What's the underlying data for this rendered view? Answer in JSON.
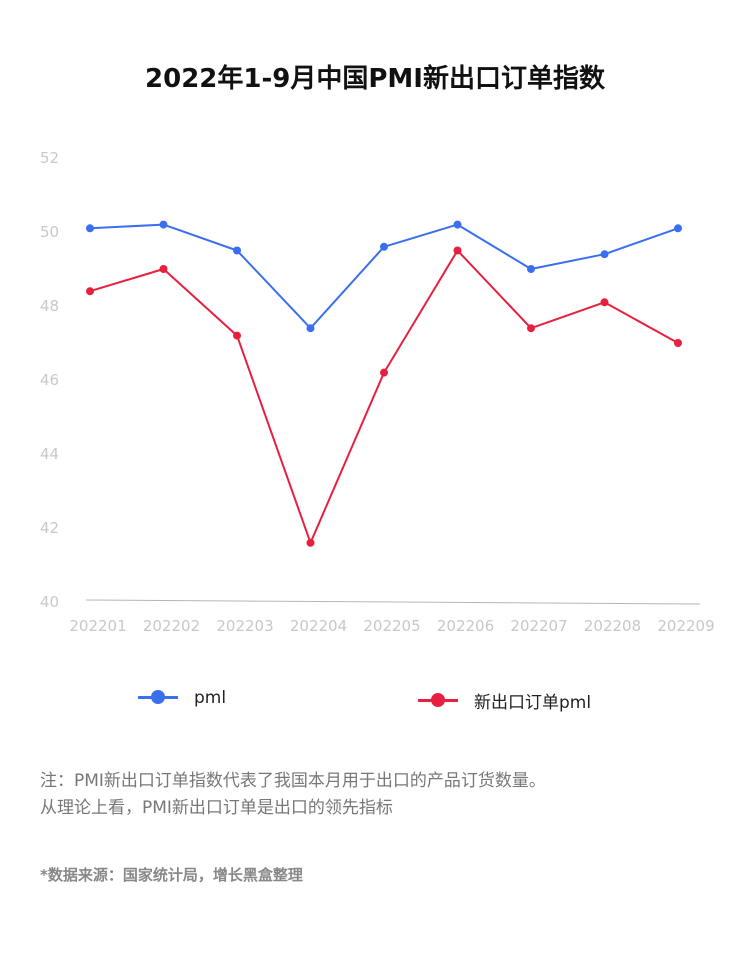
{
  "title": "2022年1-9月中国PMI新出口订单指数",
  "chart_data": {
    "type": "line",
    "categories": [
      "202201",
      "202202",
      "202203",
      "202204",
      "202205",
      "202206",
      "202207",
      "202208",
      "202209"
    ],
    "series": [
      {
        "name": "pml",
        "color": "#3a6ff0",
        "values": [
          50.1,
          50.2,
          49.5,
          47.4,
          49.6,
          50.2,
          49.0,
          49.4,
          50.1
        ]
      },
      {
        "name": "新出口订单pml",
        "color": "#e8203f",
        "values": [
          48.4,
          49.0,
          47.2,
          41.6,
          46.2,
          49.5,
          47.4,
          48.1,
          47.0
        ]
      }
    ],
    "yticks": [
      40,
      42,
      44,
      46,
      48,
      50,
      52
    ],
    "ylim": [
      40,
      52
    ],
    "title": "",
    "xlabel": "",
    "ylabel": "",
    "grid": false,
    "legend_position": "bottom"
  },
  "note": {
    "line1": "注：PMI新出口订单指数代表了我国本月用于出口的产品订货数量。",
    "line2": "从理论上看，PMI新出口订单是出口的领先指标"
  },
  "source": "*数据来源：国家统计局，增长黑盒整理"
}
